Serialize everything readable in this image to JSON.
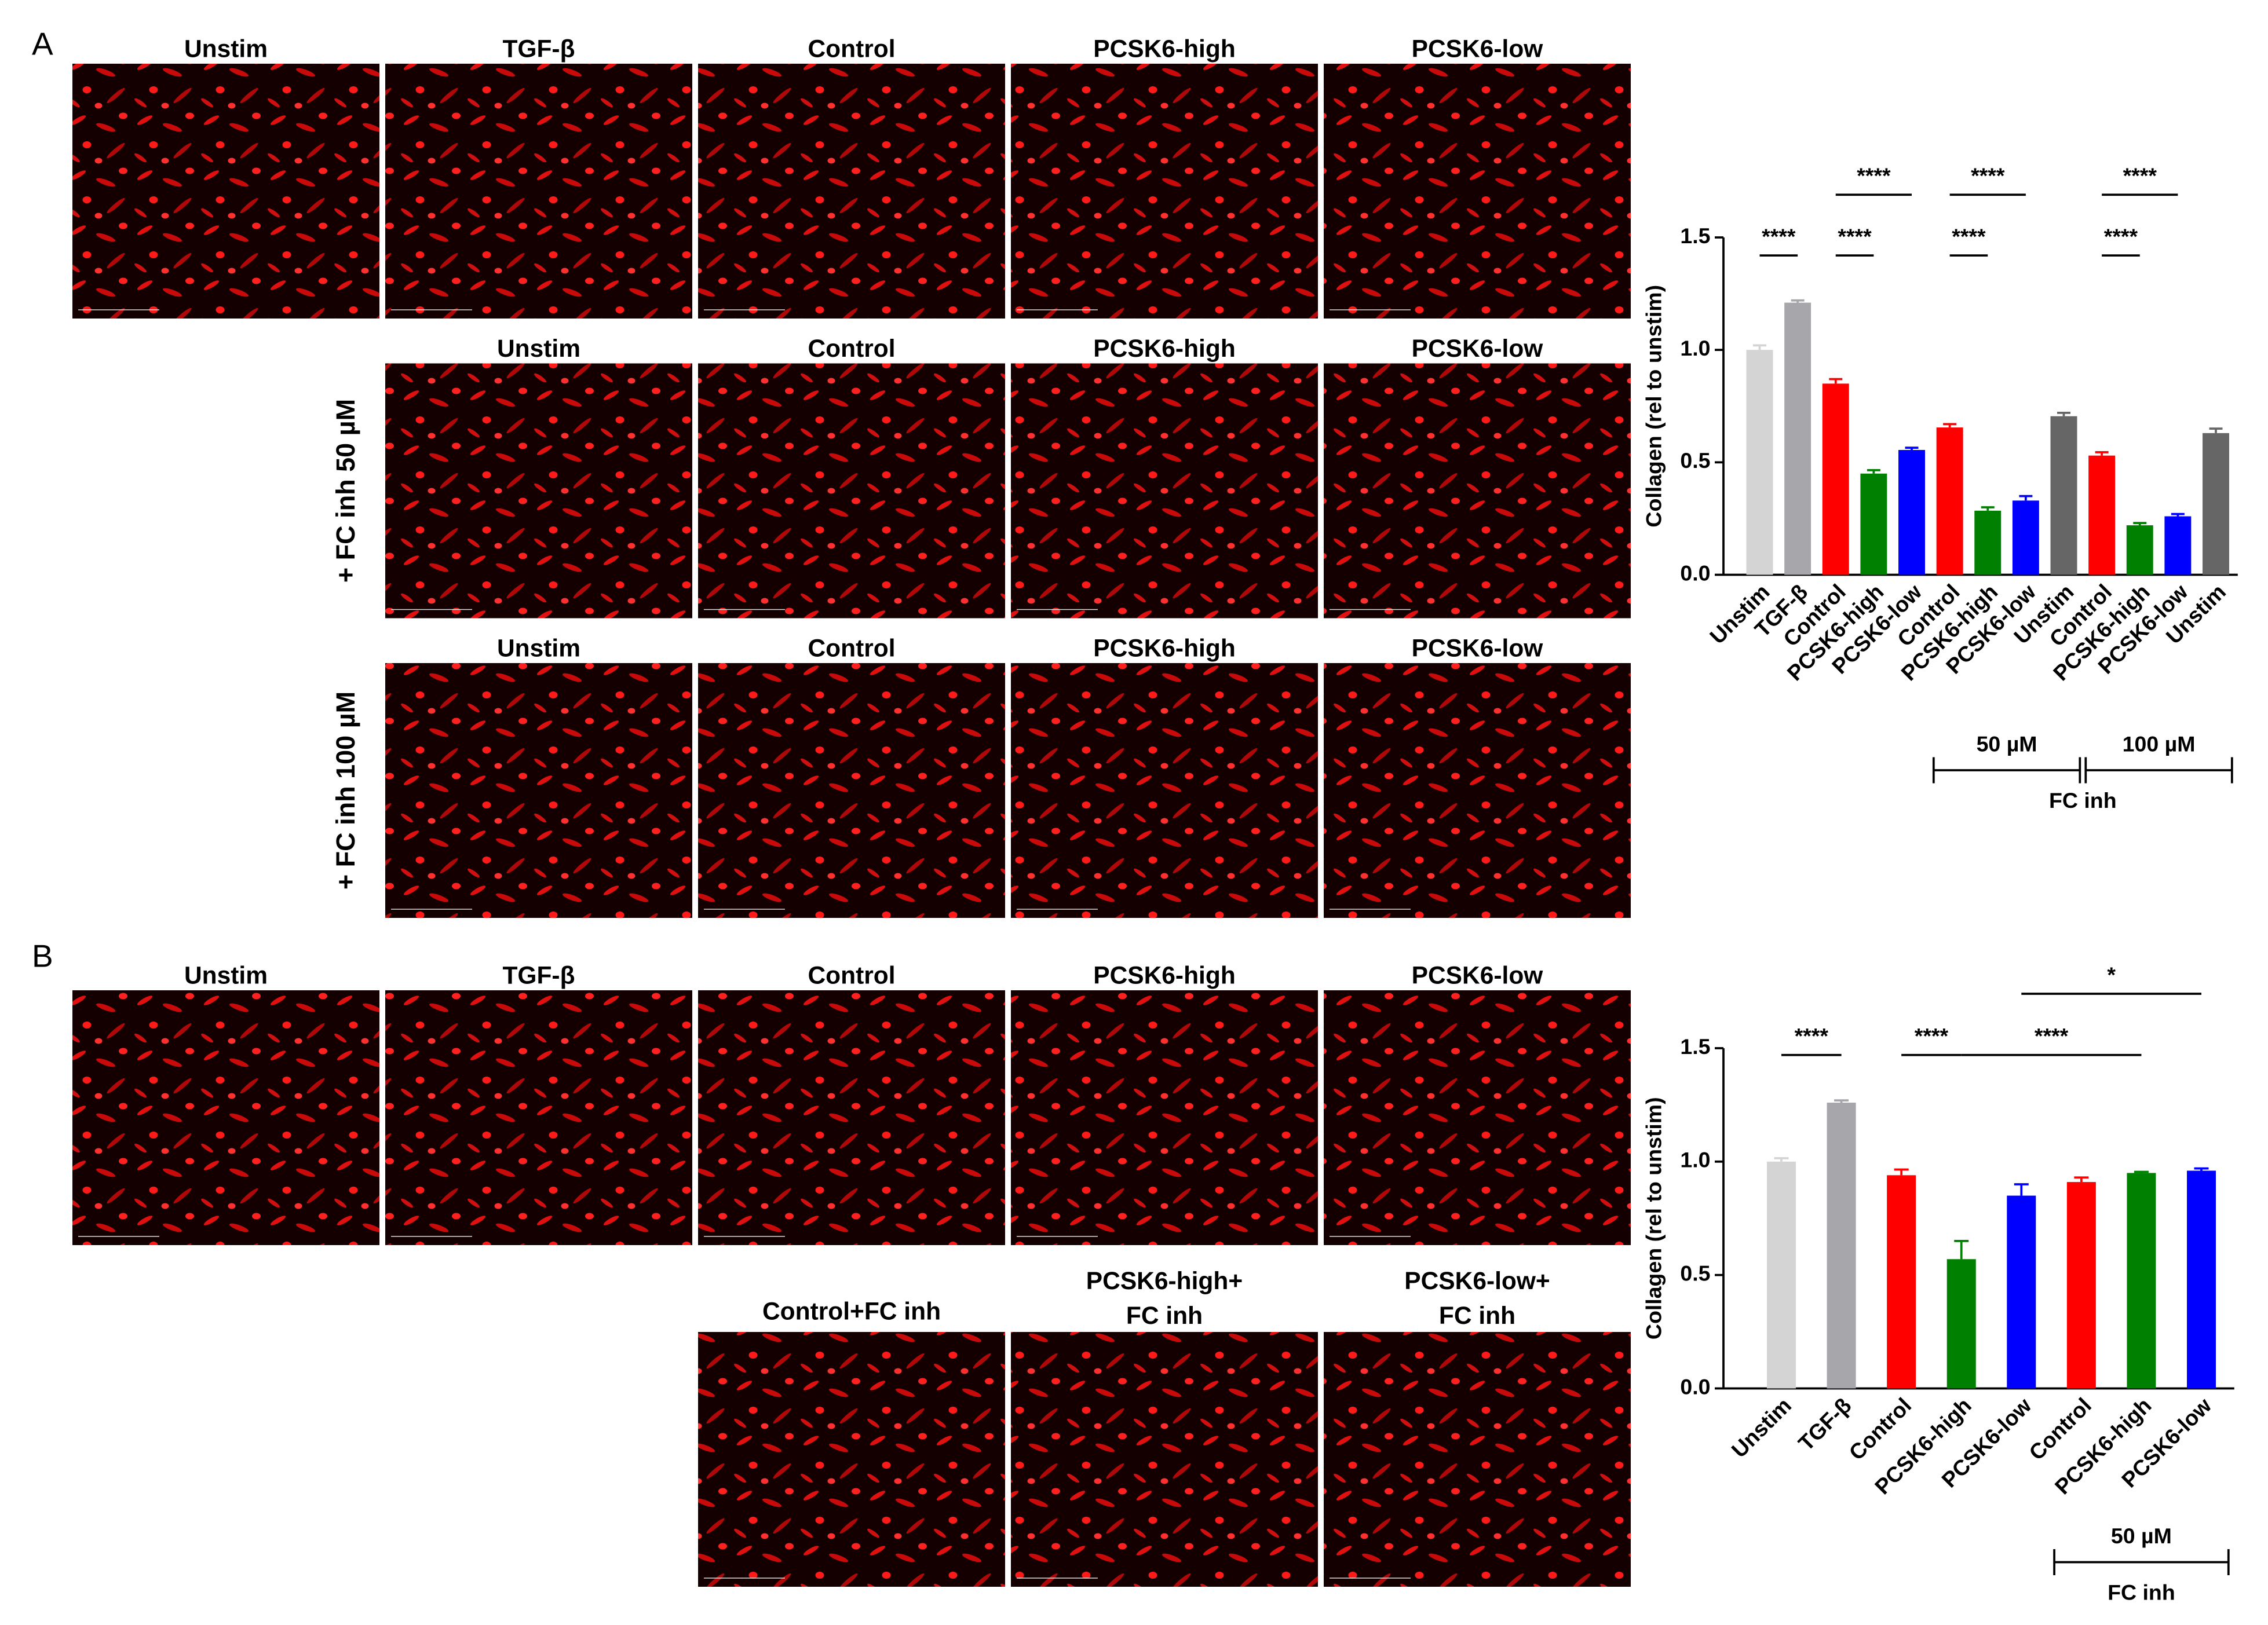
{
  "panels": [
    {
      "label": "A",
      "rows": [
        {
          "labels": [
            "Unstim",
            "TGF-β",
            "Control",
            "PCSK6-high",
            "PCSK6-low"
          ]
        },
        {
          "row_label": "+ FC inh 50 µM",
          "labels": [
            "Unstim",
            "Control",
            "PCSK6-high",
            "PCSK6-low"
          ]
        },
        {
          "row_label": "+ FC inh 100 µM",
          "labels": [
            "Unstim",
            "Control",
            "PCSK6-high",
            "PCSK6-low"
          ]
        }
      ]
    },
    {
      "label": "B",
      "rows": [
        {
          "labels": [
            "Unstim",
            "TGF-β",
            "Control",
            "PCSK6-high",
            "PCSK6-low"
          ]
        },
        {
          "labels": [
            [
              "Control+FC inh"
            ],
            [
              "PCSK6-high+",
              "FC inh"
            ],
            [
              "PCSK6-low+",
              "FC inh"
            ]
          ]
        }
      ]
    }
  ],
  "chart_data": [
    {
      "type": "bar",
      "y_label": "Collagen (rel to unstim)",
      "categories": [
        "Unstim",
        "TGF-β",
        "Control",
        "PCSK6-high",
        "PCSK6-low",
        "Control",
        "PCSK6-high",
        "PCSK6-low",
        "Unstim",
        "Control",
        "PCSK6-high",
        "PCSK6-low",
        "Unstim"
      ],
      "values": [
        1.0,
        1.21,
        0.85,
        0.45,
        0.555,
        0.655,
        0.285,
        0.33,
        0.705,
        0.53,
        0.22,
        0.26,
        0.63
      ],
      "errors": [
        0.02,
        0.01,
        0.02,
        0.015,
        0.01,
        0.015,
        0.015,
        0.02,
        0.015,
        0.015,
        0.01,
        0.01,
        0.02
      ],
      "colors": [
        "#d4d4d4",
        "#a6a6ab",
        "#ff0000",
        "#008000",
        "#0000ff",
        "#ff0000",
        "#008000",
        "#0000ff",
        "#666666",
        "#ff0000",
        "#008000",
        "#0000ff",
        "#666666"
      ],
      "ylim": [
        0,
        1.5
      ],
      "yticks": [
        {
          "value": 0,
          "label": "0.0"
        },
        {
          "value": 0.5,
          "label": "0.5"
        },
        {
          "value": 1,
          "label": "1.0"
        },
        {
          "value": 1.5,
          "label": "1.5"
        }
      ],
      "comparisons": [
        {
          "from": 0,
          "to": 1,
          "label": "****"
        },
        {
          "from": 2,
          "to": 3,
          "label": "****"
        },
        {
          "from": 2,
          "to": 4,
          "label": "****"
        },
        {
          "from": 5,
          "to": 6,
          "label": "****"
        },
        {
          "from": 5,
          "to": 7,
          "label": "****"
        },
        {
          "from": 9,
          "to": 10,
          "label": "****"
        },
        {
          "from": 9,
          "to": 11,
          "label": "****"
        }
      ],
      "groups": [
        {
          "label": "50 µM",
          "from": 5,
          "to": 8
        },
        {
          "label": "100 µM",
          "from": 9,
          "to": 12
        }
      ],
      "group_caption": "FC inh"
    },
    {
      "type": "bar",
      "y_label": "Collagen (rel to unstim)",
      "categories": [
        "Unstim",
        "TGF-β",
        "Control",
        "PCSK6-high",
        "PCSK6-low",
        "Control",
        "PCSK6-high",
        "PCSK6-low"
      ],
      "values": [
        1.0,
        1.26,
        0.94,
        0.57,
        0.85,
        0.91,
        0.95,
        0.96
      ],
      "errors": [
        0.015,
        0.01,
        0.025,
        0.08,
        0.05,
        0.02,
        0.005,
        0.01
      ],
      "colors": [
        "#d4d4d4",
        "#a6a6ab",
        "#ff0000",
        "#008000",
        "#0000ff",
        "#ff0000",
        "#008000",
        "#0000ff"
      ],
      "ylim": [
        0,
        1.5
      ],
      "yticks": [
        {
          "value": 0,
          "label": "0.0"
        },
        {
          "value": 0.5,
          "label": "0.5"
        },
        {
          "value": 1,
          "label": "1.0"
        },
        {
          "value": 1.5,
          "label": "1.5"
        }
      ],
      "comparisons": [
        {
          "from": 0,
          "to": 1,
          "label": "****"
        },
        {
          "from": 2,
          "to": 3,
          "label": "****"
        },
        {
          "from": 3,
          "to": 6,
          "label": "****"
        },
        {
          "from": 4,
          "to": 7,
          "label": "*"
        }
      ],
      "groups": [
        {
          "label": "50 µM",
          "from": 5,
          "to": 7
        }
      ],
      "group_caption": "FC inh"
    }
  ]
}
